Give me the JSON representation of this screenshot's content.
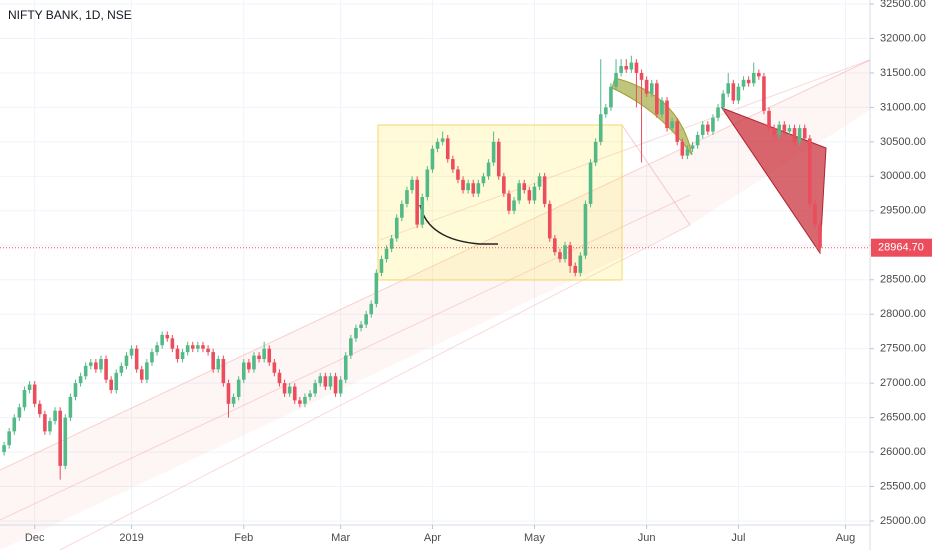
{
  "chart_data": {
    "type": "candlestick",
    "title": "NIFTY BANK, 1D, NSE",
    "up_color": "#53b987",
    "down_color": "#eb4d5c",
    "grid": true,
    "ylim": [
      24942,
      32558
    ],
    "xlim": [
      -0.8,
      169.8
    ],
    "yticks": [
      {
        "value": 25000,
        "label": "25000.00"
      },
      {
        "value": 25500,
        "label": "25500.00"
      },
      {
        "value": 26000,
        "label": "26000.00"
      },
      {
        "value": 26500,
        "label": "26500.00"
      },
      {
        "value": 27000,
        "label": "27000.00"
      },
      {
        "value": 27500,
        "label": "27500.00"
      },
      {
        "value": 28000,
        "label": "28000.00"
      },
      {
        "value": 28500,
        "label": "28500.00"
      },
      {
        "value": 29000,
        "label": "29000.00"
      },
      {
        "value": 29500,
        "label": "29500.00"
      },
      {
        "value": 30000,
        "label": "30000.00"
      },
      {
        "value": 30500,
        "label": "30500.00"
      },
      {
        "value": 31000,
        "label": "31000.00"
      },
      {
        "value": 31500,
        "label": "31500.00"
      },
      {
        "value": 32000,
        "label": "32000.00"
      },
      {
        "value": 32500,
        "label": "32500.00"
      }
    ],
    "xticks": [
      {
        "value": 6,
        "label": "Dec"
      },
      {
        "value": 25,
        "label": "2019"
      },
      {
        "value": 47,
        "label": "Feb"
      },
      {
        "value": 66,
        "label": "Mar"
      },
      {
        "value": 84,
        "label": "Apr"
      },
      {
        "value": 104,
        "label": "May"
      },
      {
        "value": 126,
        "label": "Jun"
      },
      {
        "value": 144,
        "label": "Jul"
      },
      {
        "value": 165,
        "label": "Aug"
      }
    ],
    "last_price": {
      "value": 28964.7,
      "label": "28964.70"
    },
    "open": [
      26000,
      26100,
      26300,
      26500,
      26650,
      26900,
      26980,
      26700,
      26550,
      26300,
      26450,
      26600,
      25800,
      26500,
      26800,
      27000,
      27100,
      27250,
      27300,
      27200,
      27350,
      27050,
      26900,
      27150,
      27250,
      27400,
      27500,
      27200,
      27050,
      27300,
      27450,
      27550,
      27700,
      27650,
      27500,
      27350,
      27450,
      27550,
      27500,
      27550,
      27500,
      27450,
      27200,
      27350,
      27000,
      26700,
      26800,
      27050,
      27300,
      27200,
      27400,
      27350,
      27500,
      27300,
      27150,
      27000,
      26850,
      26950,
      26750,
      26700,
      26800,
      26850,
      27000,
      27100,
      26950,
      27100,
      26850,
      27050,
      27400,
      27650,
      27800,
      27850,
      28000,
      28150,
      28600,
      28800,
      28950,
      29100,
      29400,
      29600,
      29800,
      29950,
      29300,
      29700,
      30100,
      30400,
      30500,
      30550,
      30250,
      30100,
      29950,
      29800,
      29900,
      29750,
      29900,
      30000,
      30200,
      30500,
      30000,
      29750,
      29500,
      29650,
      29900,
      29800,
      29650,
      29850,
      30000,
      29600,
      29100,
      28900,
      28800,
      29000,
      28700,
      28600,
      28850,
      29600,
      30200,
      30500,
      30900,
      31000,
      31300,
      31500,
      31600,
      31550,
      31650,
      31500,
      31400,
      31200,
      31350,
      30900,
      31100,
      30700,
      30800,
      30500,
      30300,
      30400,
      30450,
      30600,
      30750,
      30650,
      30850,
      31000,
      31200,
      31350,
      31100,
      31300,
      31400,
      31350,
      31500,
      31450,
      30950,
      30700,
      30600,
      30750,
      30650,
      30700,
      30500,
      30700,
      30550,
      29600,
      29300
    ],
    "high": [
      26150,
      26350,
      26550,
      26700,
      26950,
      27030,
      27030,
      26750,
      26600,
      26500,
      26650,
      26650,
      26550,
      26850,
      27050,
      27150,
      27300,
      27350,
      27350,
      27400,
      27400,
      27100,
      27200,
      27300,
      27450,
      27550,
      27550,
      27250,
      27350,
      27500,
      27600,
      27750,
      27750,
      27700,
      27550,
      27500,
      27600,
      27600,
      27600,
      27600,
      27550,
      27500,
      27400,
      27400,
      27050,
      26850,
      27100,
      27350,
      27350,
      27450,
      27450,
      27600,
      27550,
      27350,
      27200,
      27050,
      27000,
      27000,
      26800,
      26850,
      26900,
      27050,
      27150,
      27150,
      27150,
      27150,
      27100,
      27450,
      27700,
      27850,
      27900,
      28050,
      28200,
      28650,
      28850,
      29000,
      29150,
      29450,
      29650,
      29850,
      30000,
      30000,
      29750,
      30150,
      30450,
      30550,
      30650,
      30600,
      30300,
      30150,
      30000,
      29950,
      29950,
      29950,
      30050,
      30250,
      30650,
      30550,
      30050,
      29800,
      29700,
      29950,
      29950,
      29850,
      29900,
      30050,
      30050,
      29650,
      29150,
      28950,
      29050,
      29050,
      28750,
      28900,
      29650,
      30250,
      30550,
      31700,
      31050,
      31350,
      31700,
      31700,
      31700,
      31750,
      31700,
      31550,
      31450,
      31400,
      31400,
      31150,
      31150,
      30850,
      30850,
      30550,
      30450,
      30500,
      30650,
      30800,
      30800,
      30900,
      31050,
      31250,
      31500,
      31400,
      31350,
      31450,
      31450,
      31650,
      31550,
      31500,
      31000,
      30750,
      30800,
      30800,
      30750,
      30750,
      30750,
      30750,
      30600,
      29650,
      29350
    ],
    "low": [
      25950,
      26050,
      26250,
      26450,
      26600,
      26850,
      26650,
      26500,
      26250,
      26250,
      26400,
      25600,
      25750,
      26450,
      26750,
      26950,
      27050,
      27200,
      27150,
      27150,
      27000,
      26850,
      26850,
      27100,
      27200,
      27350,
      27150,
      27000,
      27000,
      27250,
      27400,
      27500,
      27600,
      27450,
      27300,
      27300,
      27400,
      27450,
      27450,
      27450,
      27400,
      27150,
      27150,
      26950,
      26500,
      26650,
      26750,
      27000,
      27150,
      27150,
      27300,
      27300,
      27250,
      27100,
      26950,
      26800,
      26800,
      26700,
      26650,
      26650,
      26750,
      26800,
      26950,
      26900,
      26900,
      26800,
      26800,
      27000,
      27350,
      27600,
      27750,
      27800,
      27950,
      28100,
      28550,
      28750,
      28900,
      29050,
      29350,
      29550,
      29750,
      29250,
      29250,
      29650,
      30050,
      30350,
      30450,
      30200,
      30050,
      29900,
      29750,
      29750,
      29700,
      29700,
      29850,
      29950,
      30150,
      29950,
      29700,
      29450,
      29450,
      29600,
      29750,
      29600,
      29600,
      29800,
      29550,
      29050,
      28850,
      28750,
      28750,
      28600,
      28550,
      28550,
      28800,
      29550,
      30150,
      30450,
      30850,
      30950,
      31250,
      31450,
      31500,
      31500,
      31000,
      30200,
      31150,
      31150,
      30850,
      30850,
      30650,
      30650,
      30450,
      30250,
      30250,
      30350,
      30400,
      30550,
      30600,
      30600,
      30800,
      30950,
      31150,
      31050,
      31050,
      31250,
      31300,
      31300,
      31400,
      30900,
      30650,
      30550,
      30550,
      30600,
      30600,
      30450,
      30450,
      30500,
      29550,
      29250,
      28900
    ],
    "close": [
      26100,
      26300,
      26500,
      26650,
      26900,
      26980,
      26700,
      26550,
      26300,
      26450,
      26600,
      25800,
      26500,
      26800,
      27000,
      27100,
      27250,
      27300,
      27200,
      27350,
      27050,
      26900,
      27150,
      27250,
      27400,
      27500,
      27200,
      27050,
      27300,
      27450,
      27550,
      27700,
      27650,
      27500,
      27350,
      27450,
      27550,
      27500,
      27550,
      27500,
      27450,
      27200,
      27350,
      27000,
      26700,
      26800,
      27050,
      27300,
      27200,
      27400,
      27350,
      27500,
      27300,
      27150,
      27000,
      26850,
      26950,
      26750,
      26700,
      26800,
      26850,
      27000,
      27100,
      26950,
      27100,
      26850,
      27050,
      27400,
      27650,
      27800,
      27850,
      28000,
      28150,
      28600,
      28800,
      28950,
      29100,
      29400,
      29600,
      29800,
      29950,
      29300,
      29700,
      30100,
      30400,
      30500,
      30550,
      30250,
      30100,
      29950,
      29800,
      29900,
      29750,
      29900,
      30000,
      30200,
      30500,
      30000,
      29750,
      29500,
      29650,
      29900,
      29800,
      29650,
      29850,
      30000,
      29600,
      29100,
      28900,
      28800,
      29000,
      28700,
      28600,
      28850,
      29600,
      30200,
      30500,
      30900,
      31000,
      31300,
      31500,
      31600,
      31550,
      31650,
      31500,
      31400,
      31200,
      31350,
      30900,
      31100,
      30700,
      30800,
      30500,
      30300,
      30400,
      30450,
      30600,
      30750,
      30650,
      30850,
      31000,
      31200,
      31350,
      31100,
      31300,
      31400,
      31350,
      31500,
      31450,
      30950,
      30700,
      30600,
      30750,
      30650,
      30700,
      30500,
      30700,
      30550,
      29600,
      29300,
      28964.7
    ]
  }
}
